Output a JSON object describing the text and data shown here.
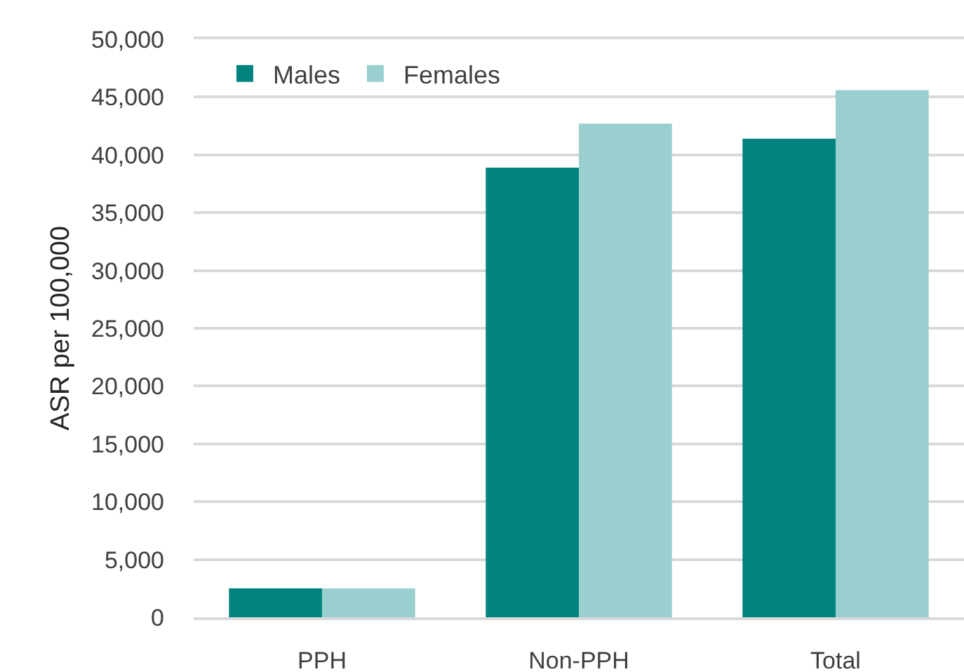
{
  "chart_data": {
    "type": "bar",
    "ylabel": "ASR per 100,000",
    "categories": [
      "PPH",
      "Non-PPH",
      "Total"
    ],
    "series": [
      {
        "name": "Males",
        "color": "#00827f",
        "values": [
          2500,
          38900,
          41400
        ]
      },
      {
        "name": "Females",
        "color": "#99d0cf",
        "values": [
          2500,
          42700,
          45600
        ]
      }
    ],
    "ylim": [
      0,
      50000
    ],
    "yticks": [
      {
        "value": 0,
        "label": "0"
      },
      {
        "value": 5000,
        "label": "5,000"
      },
      {
        "value": 10000,
        "label": "10,000"
      },
      {
        "value": 15000,
        "label": "15,000"
      },
      {
        "value": 20000,
        "label": "20,000"
      },
      {
        "value": 25000,
        "label": "25,000"
      },
      {
        "value": 30000,
        "label": "30,000"
      },
      {
        "value": 35000,
        "label": "35,000"
      },
      {
        "value": 40000,
        "label": "40,000"
      },
      {
        "value": 45000,
        "label": "45,000"
      },
      {
        "value": 50000,
        "label": "50,000"
      }
    ],
    "grid": "y",
    "legend": "top left"
  }
}
